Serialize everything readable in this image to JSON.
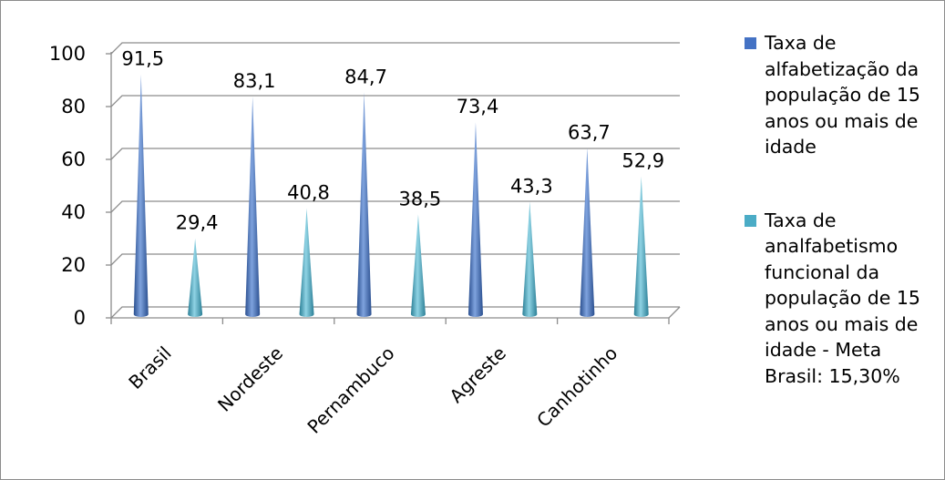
{
  "chart_data": {
    "type": "bar",
    "bar_shape": "cone",
    "categories": [
      "Brasil",
      "Nordeste",
      "Pernambuco",
      "Agreste",
      "Canhotinho"
    ],
    "series": [
      {
        "name": "Taxa de alfabetização da população de 15 anos ou mais de idade",
        "values": [
          91.5,
          83.1,
          84.7,
          73.4,
          63.7
        ],
        "labels": [
          "91,5",
          "83,1",
          "84,7",
          "73,4",
          "63,7"
        ],
        "color": "#4472c4"
      },
      {
        "name": "Taxa de analfabetismo funcional da população de 15 anos ou mais de idade - Meta Brasil: 15,30%",
        "values": [
          29.4,
          40.8,
          38.5,
          43.3,
          52.9
        ],
        "labels": [
          "29,4",
          "40,8",
          "38,5",
          "43,3",
          "52,9"
        ],
        "color": "#4bacc6"
      }
    ],
    "ylim": [
      0,
      100
    ],
    "yticks": [
      0,
      20,
      40,
      60,
      80,
      100
    ],
    "grid": true,
    "legend_position": "right"
  }
}
